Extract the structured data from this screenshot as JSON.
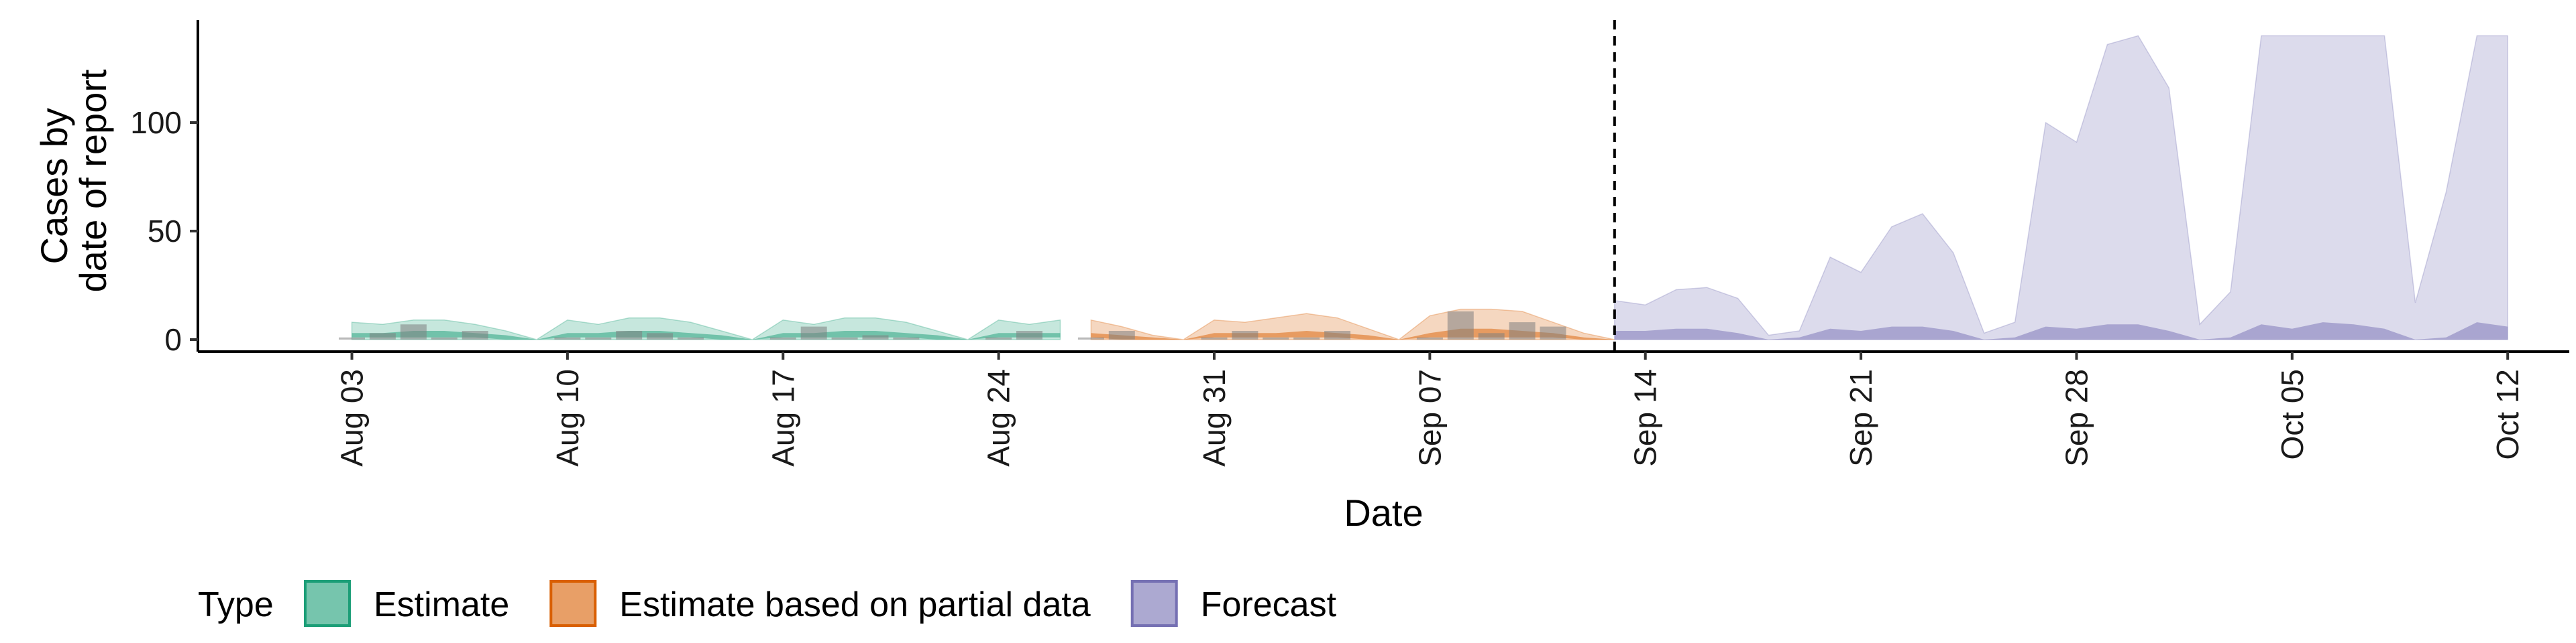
{
  "chart_data": {
    "type": "area",
    "xlabel": "Date",
    "ylabel_lines": [
      "Cases by",
      "date of report"
    ],
    "ylim": [
      0,
      140
    ],
    "y_ticks": [
      0,
      50,
      100
    ],
    "x_ticks": [
      "2020-08-03",
      "2020-08-10",
      "2020-08-17",
      "2020-08-24",
      "2020-08-31",
      "2020-09-07",
      "2020-09-14",
      "2020-09-21",
      "2020-09-28",
      "2020-10-05",
      "2020-10-12"
    ],
    "x_tick_labels": [
      "Aug 03",
      "Aug 10",
      "Aug 17",
      "Aug 24",
      "Aug 31",
      "Sep 07",
      "Sep 14",
      "Sep 21",
      "Sep 28",
      "Oct 05",
      "Oct 12"
    ],
    "xlim": [
      "2020-07-29",
      "2020-10-14"
    ],
    "forecast_start": "2020-09-13",
    "colors": {
      "Estimate": "#1b9e77",
      "Estimate based on partial data": "#d95f02",
      "Forecast": "#7570b3",
      "observed": "#808080"
    },
    "legend": {
      "title": "Type",
      "position": "bottom",
      "items": [
        "Estimate",
        "Estimate based on partial data",
        "Forecast"
      ]
    },
    "series": [
      {
        "name": "Estimate",
        "x": [
          "2020-08-03",
          "2020-08-04",
          "2020-08-05",
          "2020-08-06",
          "2020-08-07",
          "2020-08-08",
          "2020-08-09",
          "2020-08-10",
          "2020-08-11",
          "2020-08-12",
          "2020-08-13",
          "2020-08-14",
          "2020-08-15",
          "2020-08-16",
          "2020-08-17",
          "2020-08-18",
          "2020-08-19",
          "2020-08-20",
          "2020-08-21",
          "2020-08-22",
          "2020-08-23",
          "2020-08-24",
          "2020-08-25",
          "2020-08-26"
        ],
        "upper_90": [
          8,
          7,
          9,
          9,
          7,
          4,
          0,
          9,
          7,
          10,
          10,
          8,
          4,
          0,
          9,
          7,
          10,
          10,
          8,
          4,
          0,
          9,
          7,
          9
        ],
        "lower_90": [
          0,
          0,
          0,
          0,
          0,
          0,
          0,
          0,
          0,
          0,
          0,
          0,
          0,
          0,
          0,
          0,
          0,
          0,
          0,
          0,
          0,
          0,
          0,
          0
        ],
        "upper_50": [
          3,
          3,
          4,
          4,
          3,
          2,
          0,
          3,
          3,
          4,
          4,
          3,
          2,
          0,
          3,
          3,
          4,
          4,
          3,
          2,
          0,
          3,
          3,
          3
        ],
        "lower_50": [
          1,
          1,
          1,
          1,
          1,
          0,
          0,
          1,
          1,
          1,
          1,
          1,
          0,
          0,
          1,
          1,
          1,
          1,
          1,
          0,
          0,
          1,
          1,
          1
        ]
      },
      {
        "name": "Estimate based on partial data",
        "x": [
          "2020-08-27",
          "2020-08-28",
          "2020-08-29",
          "2020-08-30",
          "2020-08-31",
          "2020-09-01",
          "2020-09-02",
          "2020-09-03",
          "2020-09-04",
          "2020-09-05",
          "2020-09-06",
          "2020-09-07",
          "2020-09-08",
          "2020-09-09",
          "2020-09-10",
          "2020-09-11",
          "2020-09-12",
          "2020-09-13"
        ],
        "upper_90": [
          9,
          6,
          2,
          0,
          9,
          8,
          10,
          12,
          10,
          5,
          0,
          11,
          14,
          14,
          13,
          8,
          3,
          0
        ],
        "lower_90": [
          0,
          0,
          0,
          0,
          0,
          0,
          0,
          0,
          0,
          0,
          0,
          0,
          0,
          0,
          0,
          0,
          0,
          0
        ],
        "upper_50": [
          3,
          2,
          1,
          0,
          3,
          3,
          3,
          4,
          3,
          2,
          0,
          3,
          5,
          5,
          4,
          3,
          1,
          0
        ],
        "lower_50": [
          1,
          0,
          0,
          0,
          1,
          1,
          1,
          1,
          1,
          0,
          0,
          1,
          1,
          1,
          1,
          1,
          0,
          0
        ]
      },
      {
        "name": "Forecast",
        "x": [
          "2020-09-13",
          "2020-09-14",
          "2020-09-15",
          "2020-09-16",
          "2020-09-17",
          "2020-09-18",
          "2020-09-19",
          "2020-09-20",
          "2020-09-21",
          "2020-09-22",
          "2020-09-23",
          "2020-09-24",
          "2020-09-25",
          "2020-09-26",
          "2020-09-27",
          "2020-09-28",
          "2020-09-29",
          "2020-09-30",
          "2020-10-01",
          "2020-10-02",
          "2020-10-03",
          "2020-10-04",
          "2020-10-05",
          "2020-10-06",
          "2020-10-07",
          "2020-10-08",
          "2020-10-09",
          "2020-10-10",
          "2020-10-11",
          "2020-10-12"
        ],
        "upper_90": [
          18,
          16,
          23,
          24,
          19,
          2,
          4,
          38,
          31,
          52,
          58,
          40,
          3,
          8,
          100,
          91,
          136,
          140,
          116,
          7,
          22,
          140,
          140,
          140,
          140,
          140,
          17,
          68,
          140,
          140
        ],
        "lower_90": [
          0,
          0,
          0,
          0,
          0,
          0,
          0,
          0,
          0,
          0,
          0,
          0,
          0,
          0,
          0,
          0,
          0,
          0,
          0,
          0,
          0,
          0,
          0,
          0,
          0,
          0,
          0,
          0,
          0,
          0
        ],
        "upper_50": [
          4,
          4,
          5,
          5,
          3,
          0,
          1,
          5,
          4,
          6,
          6,
          4,
          0,
          1,
          6,
          5,
          7,
          7,
          4,
          0,
          1,
          7,
          5,
          8,
          7,
          5,
          0,
          1,
          8,
          6
        ],
        "lower_50": [
          0,
          0,
          0,
          0,
          0,
          0,
          0,
          0,
          0,
          0,
          0,
          0,
          0,
          0,
          0,
          0,
          0,
          0,
          0,
          0,
          0,
          0,
          0,
          0,
          0,
          0,
          0,
          0,
          0,
          0
        ]
      }
    ],
    "observed": {
      "x": [
        "2020-08-03",
        "2020-08-04",
        "2020-08-05",
        "2020-08-06",
        "2020-08-07",
        "2020-08-10",
        "2020-08-11",
        "2020-08-12",
        "2020-08-13",
        "2020-08-14",
        "2020-08-17",
        "2020-08-18",
        "2020-08-19",
        "2020-08-20",
        "2020-08-21",
        "2020-08-24",
        "2020-08-25",
        "2020-08-27",
        "2020-08-28",
        "2020-08-31",
        "2020-09-01",
        "2020-09-02",
        "2020-09-03",
        "2020-09-04",
        "2020-09-07",
        "2020-09-08",
        "2020-09-09",
        "2020-09-10",
        "2020-09-11"
      ],
      "values": [
        1,
        3,
        7,
        1,
        4,
        1,
        1,
        4,
        3,
        1,
        1,
        6,
        1,
        2,
        1,
        1,
        4,
        1,
        4,
        1,
        4,
        1,
        1,
        4,
        1,
        13,
        3,
        8,
        6
      ]
    }
  }
}
